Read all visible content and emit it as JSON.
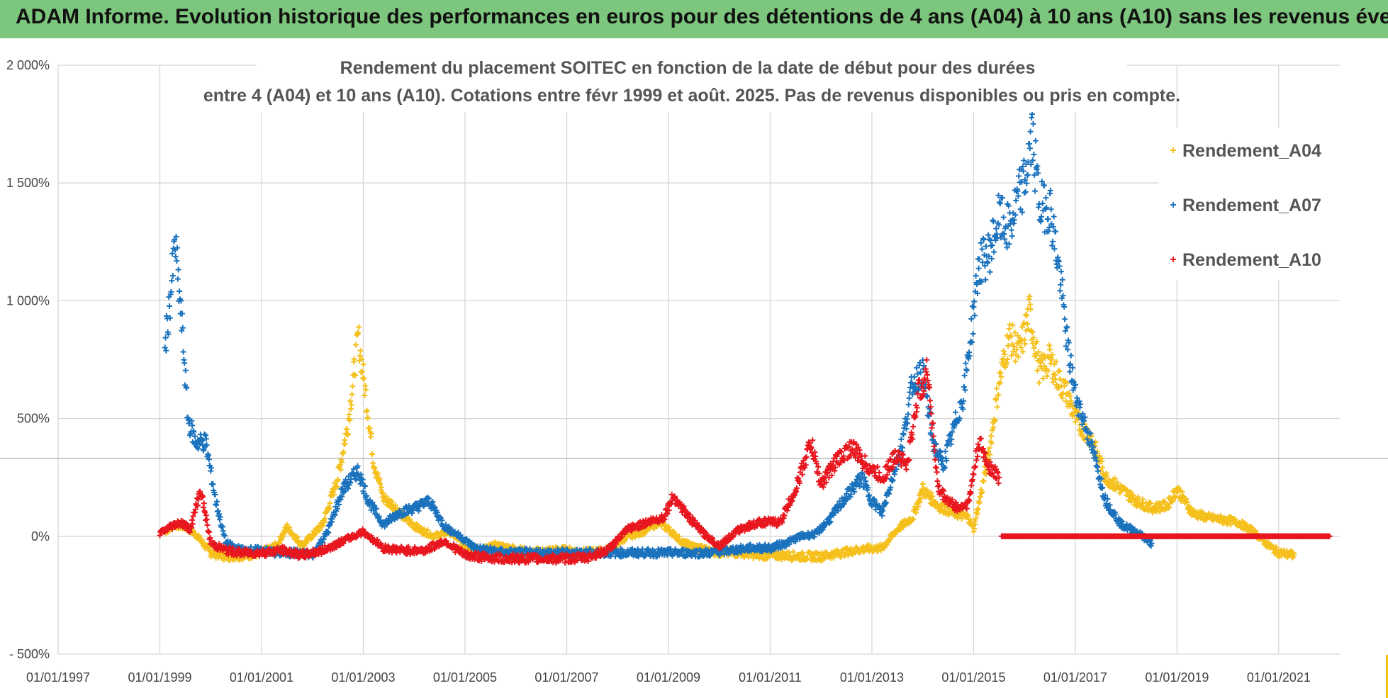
{
  "banner": {
    "title": "ADAM Informe. Evolution historique des performances en euros pour des détentions de 4 ans (A04) à 10 ans (A10) sans les revenus éventuels"
  },
  "colors": {
    "banner": "#7dc67d",
    "A04": "#f5c01c",
    "A07": "#1a72bd",
    "A10": "#e8161e"
  },
  "chart_data": {
    "type": "scatter",
    "title_lines": [
      "Rendement du placement SOITEC en fonction de la date de début pour des durées",
      "entre 4 (A04) et 10 ans (A10). Cotations entre févr 1999 et août. 2025. Pas de revenus disponibles ou pris en compte."
    ],
    "xlabel": "",
    "ylabel": "",
    "ylim": [
      -500,
      2000
    ],
    "xlim": [
      1997.0,
      2022.2
    ],
    "y_ticks": [
      -500,
      0,
      500,
      1000,
      1500,
      2000
    ],
    "y_tick_labels": [
      "- 500%",
      "0%",
      "500%",
      "1 000%",
      "1 500%",
      "2 000%"
    ],
    "x_ticks": [
      1997,
      1999,
      2001,
      2003,
      2005,
      2007,
      2009,
      2011,
      2013,
      2015,
      2017,
      2019,
      2021
    ],
    "x_tick_labels": [
      "01/01/1997",
      "01/01/1999",
      "01/01/2001",
      "01/01/2003",
      "01/01/2005",
      "01/01/2007",
      "01/01/2009",
      "01/01/2011",
      "01/01/2013",
      "01/01/2015",
      "01/01/2017",
      "01/01/2019",
      "01/01/2021"
    ],
    "grid": true,
    "legend_position": "top-right",
    "marker": "+",
    "series": [
      {
        "name": "Rendement_A04",
        "x": [
          1999.1,
          1999.3,
          1999.5,
          1999.7,
          2000.0,
          2000.3,
          2000.7,
          2001.0,
          2001.3,
          2001.5,
          2001.8,
          2002.2,
          2002.5,
          2002.7,
          2002.9,
          2003.05,
          2003.2,
          2003.4,
          2003.6,
          2003.8,
          2004.1,
          2004.4,
          2004.7,
          2005.0,
          2005.3,
          2005.6,
          2005.9,
          2006.3,
          2006.7,
          2007.0,
          2007.4,
          2007.8,
          2008.2,
          2008.5,
          2008.8,
          2009.0,
          2009.3,
          2009.6,
          2010.0,
          2010.4,
          2010.8,
          2011.2,
          2011.6,
          2012.0,
          2012.4,
          2012.8,
          2013.2,
          2013.5,
          2013.8,
          2014.0,
          2014.3,
          2014.6,
          2014.9,
          2015.0,
          2015.3,
          2015.5,
          2015.7,
          2015.9,
          2016.1,
          2016.3,
          2016.5,
          2016.7,
          2016.85,
          2017.0,
          2017.3,
          2017.6,
          2017.9,
          2018.2,
          2018.5,
          2018.8,
          2019.0,
          2019.3,
          2019.6,
          2019.9,
          2020.2,
          2020.5,
          2020.8,
          2021.0,
          2021.3
        ],
        "y": [
          20,
          50,
          40,
          10,
          -70,
          -85,
          -80,
          -70,
          -40,
          40,
          -40,
          50,
          250,
          480,
          850,
          600,
          320,
          160,
          130,
          80,
          30,
          0,
          20,
          -40,
          -60,
          -40,
          -50,
          -70,
          -60,
          -60,
          -70,
          -60,
          0,
          20,
          60,
          30,
          -30,
          -50,
          -70,
          -70,
          -80,
          -80,
          -85,
          -85,
          -70,
          -55,
          -50,
          30,
          80,
          200,
          130,
          100,
          80,
          30,
          350,
          650,
          850,
          780,
          950,
          700,
          750,
          650,
          600,
          500,
          420,
          250,
          200,
          150,
          120,
          130,
          200,
          100,
          80,
          70,
          60,
          20,
          -40,
          -70,
          -80
        ]
      },
      {
        "name": "Rendement_A07",
        "x": [
          1999.1,
          1999.2,
          1999.3,
          1999.45,
          1999.55,
          1999.7,
          1999.9,
          2000.1,
          2000.3,
          2000.6,
          2001.0,
          2001.3,
          2001.6,
          2002.0,
          2002.3,
          2002.6,
          2002.9,
          2003.1,
          2003.4,
          2003.7,
          2004.0,
          2004.3,
          2004.6,
          2004.9,
          2005.2,
          2005.5,
          2005.8,
          2006.2,
          2006.6,
          2007.0,
          2007.4,
          2007.8,
          2008.2,
          2008.6,
          2009.0,
          2009.4,
          2009.8,
          2010.2,
          2010.6,
          2011.0,
          2011.3,
          2011.6,
          2011.9,
          2012.2,
          2012.5,
          2012.8,
          2013.0,
          2013.2,
          2013.4,
          2013.6,
          2013.8,
          2014.0,
          2014.2,
          2014.4,
          2014.6,
          2014.8,
          2015.0,
          2015.1,
          2015.3,
          2015.5,
          2015.7,
          2015.9,
          2016.0,
          2016.15,
          2016.3,
          2016.5,
          2016.7,
          2016.85,
          2017.0,
          2017.3,
          2017.6,
          2017.9,
          2018.2,
          2018.5
        ],
        "y": [
          800,
          1000,
          1250,
          850,
          500,
          400,
          400,
          150,
          -30,
          -60,
          -60,
          -70,
          -70,
          -80,
          20,
          200,
          280,
          150,
          50,
          100,
          120,
          150,
          40,
          0,
          -50,
          -60,
          -70,
          -70,
          -70,
          -70,
          -70,
          -70,
          -70,
          -70,
          -70,
          -70,
          -70,
          -60,
          -50,
          -50,
          -30,
          0,
          10,
          80,
          170,
          250,
          150,
          100,
          250,
          400,
          650,
          700,
          400,
          300,
          450,
          600,
          950,
          1150,
          1200,
          1350,
          1300,
          1450,
          1500,
          1700,
          1400,
          1400,
          1100,
          800,
          600,
          400,
          150,
          50,
          20,
          -30
        ]
      },
      {
        "name": "Rendement_A10",
        "x": [
          1999.0,
          1999.2,
          1999.4,
          1999.6,
          1999.8,
          2000.0,
          2000.3,
          2000.6,
          2001.0,
          2001.4,
          2001.8,
          2002.2,
          2002.6,
          2003.0,
          2003.4,
          2003.8,
          2004.2,
          2004.6,
          2005.0,
          2005.4,
          2005.8,
          2006.2,
          2006.6,
          2007.0,
          2007.4,
          2007.8,
          2008.2,
          2008.6,
          2008.9,
          2009.1,
          2009.4,
          2009.7,
          2010.0,
          2010.4,
          2010.8,
          2011.2,
          2011.5,
          2011.8,
          2012.0,
          2012.3,
          2012.6,
          2012.9,
          2013.2,
          2013.5,
          2013.7,
          2013.9,
          2014.1,
          2014.3,
          2014.5,
          2014.7,
          2014.9,
          2015.1,
          2015.3,
          2015.5
        ],
        "y": [
          10,
          40,
          60,
          30,
          200,
          -30,
          -60,
          -70,
          -70,
          -60,
          -80,
          -60,
          -20,
          20,
          -50,
          -60,
          -60,
          -20,
          -80,
          -90,
          -95,
          -95,
          -95,
          -95,
          -90,
          -60,
          30,
          60,
          80,
          170,
          80,
          10,
          -40,
          30,
          60,
          60,
          200,
          400,
          220,
          320,
          380,
          300,
          250,
          350,
          300,
          600,
          700,
          200,
          150,
          120,
          140,
          400,
          300,
          250
        ]
      },
      {
        "name": "Rendement_A10",
        "x": [
          2015.55,
          2016.0,
          2016.5,
          2017.0,
          2017.5,
          2018.0,
          2018.5,
          2019.0,
          2019.5,
          2020.0,
          2020.5,
          2021.0,
          2021.5,
          2022.0
        ],
        "y": [
          0,
          0,
          0,
          0,
          0,
          0,
          0,
          0,
          0,
          0,
          0,
          0,
          0,
          0
        ]
      }
    ]
  }
}
